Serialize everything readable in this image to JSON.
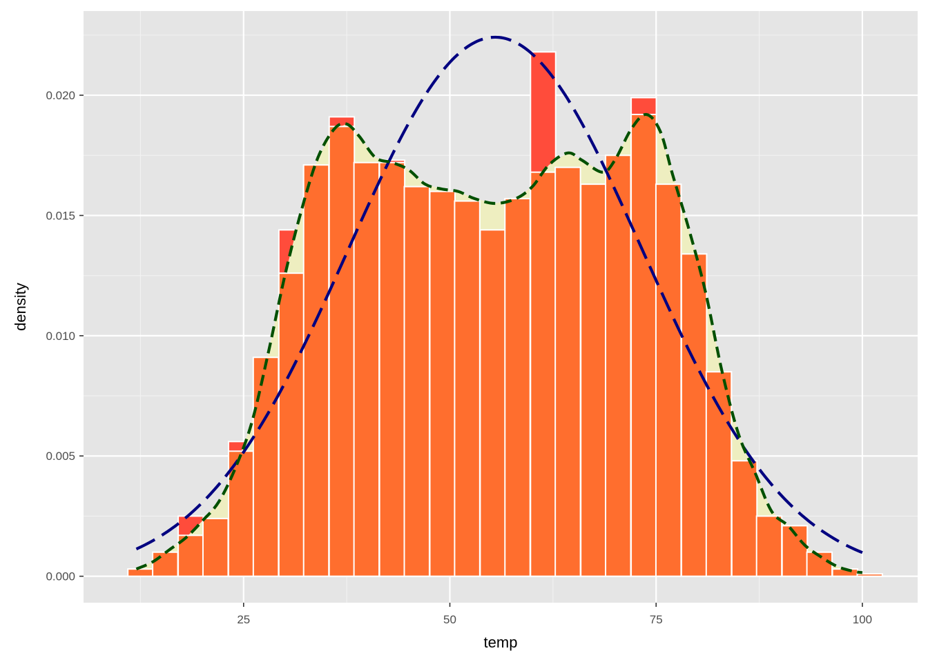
{
  "chart_data": {
    "type": "histogram",
    "title": "",
    "xlabel": "temp",
    "ylabel": "density",
    "xlim": [
      5.6,
      106.7
    ],
    "ylim": [
      -0.0011,
      0.0235
    ],
    "x_ticks": [
      25,
      50,
      75,
      100
    ],
    "x_tick_labels": [
      "25",
      "50",
      "75",
      "100"
    ],
    "y_ticks": [
      0.0,
      0.005,
      0.01,
      0.015,
      0.02
    ],
    "y_tick_labels": [
      "0.000",
      "0.005",
      "0.010",
      "0.015",
      "0.020"
    ],
    "grid": true,
    "bin_width": 3.05,
    "bin_centers": [
      12.5,
      15.5,
      18.6,
      21.6,
      24.7,
      27.7,
      30.8,
      33.8,
      36.9,
      39.9,
      43.0,
      46.0,
      49.1,
      52.1,
      55.2,
      58.2,
      61.3,
      64.3,
      67.4,
      70.4,
      73.5,
      76.5,
      79.6,
      82.6,
      85.7,
      88.7,
      91.8,
      94.8,
      97.9,
      100.9
    ],
    "series": [
      {
        "kind": "histogram",
        "color": "#FF4C3B",
        "values": [
          0.0003,
          0.001,
          0.0025,
          0.0024,
          0.0056,
          0.0091,
          0.0144,
          0.0171,
          0.0191,
          0.0172,
          0.0173,
          0.0162,
          0.016,
          0.0156,
          0.0144,
          0.0157,
          0.0218,
          0.017,
          0.0163,
          0.0175,
          0.0199,
          0.0163,
          0.0134,
          0.0085,
          0.0048,
          0.0025,
          0.0021,
          0.001,
          0.0003,
          0.0001
        ]
      },
      {
        "kind": "density-area",
        "color": "#EEEEC0",
        "x": [
          12,
          14,
          16,
          18,
          20,
          22,
          24,
          26,
          28,
          30,
          32,
          34,
          36,
          37.5,
          39,
          41,
          43,
          45,
          47,
          49,
          51,
          53,
          55.5,
          58,
          60,
          62,
          64.3,
          66,
          68.5,
          70,
          72,
          73.8,
          75.5,
          77,
          79,
          81,
          83,
          85,
          87,
          89,
          91,
          93,
          95,
          97,
          99,
          100
        ],
        "values": [
          0.0003,
          0.0006,
          0.0011,
          0.0016,
          0.0023,
          0.0031,
          0.0045,
          0.0064,
          0.0093,
          0.0125,
          0.0152,
          0.0174,
          0.0186,
          0.0188,
          0.0183,
          0.0174,
          0.0172,
          0.0169,
          0.0163,
          0.0161,
          0.016,
          0.0157,
          0.0155,
          0.0157,
          0.0162,
          0.0171,
          0.0176,
          0.0173,
          0.0168,
          0.0173,
          0.0186,
          0.0192,
          0.0185,
          0.0167,
          0.0144,
          0.0118,
          0.0085,
          0.0059,
          0.0043,
          0.0027,
          0.0021,
          0.0013,
          0.0008,
          0.0004,
          0.0002,
          0.00015
        ]
      },
      {
        "kind": "histogram-overlay",
        "color": "#FF6E2E",
        "values": [
          0.0003,
          0.001,
          0.0017,
          0.0024,
          0.0052,
          0.0091,
          0.0126,
          0.0171,
          0.0187,
          0.0172,
          0.0172,
          0.0162,
          0.016,
          0.0156,
          0.0144,
          0.0157,
          0.0168,
          0.017,
          0.0163,
          0.0175,
          0.0192,
          0.0163,
          0.0134,
          0.0085,
          0.0048,
          0.0025,
          0.0021,
          0.001,
          0.0003,
          0.0001
        ]
      },
      {
        "kind": "kernel-density-line",
        "color": "#005000",
        "dash": "dashed",
        "x": [
          12,
          14,
          16,
          18,
          20,
          22,
          24,
          26,
          28,
          30,
          32,
          34,
          36,
          37.5,
          39,
          41,
          43,
          45,
          47,
          49,
          51,
          53,
          55.5,
          58,
          60,
          62,
          64.3,
          66,
          68.5,
          70,
          72,
          73.8,
          75.5,
          77,
          79,
          81,
          83,
          85,
          87,
          89,
          91,
          93,
          95,
          97,
          99,
          100
        ],
        "values": [
          0.0003,
          0.0006,
          0.0011,
          0.0016,
          0.0023,
          0.0031,
          0.0045,
          0.0064,
          0.0093,
          0.0125,
          0.0152,
          0.0174,
          0.0186,
          0.0188,
          0.0183,
          0.0174,
          0.0172,
          0.0169,
          0.0163,
          0.0161,
          0.016,
          0.0157,
          0.0155,
          0.0157,
          0.0162,
          0.0171,
          0.0176,
          0.0173,
          0.0168,
          0.0173,
          0.0186,
          0.0192,
          0.0185,
          0.0167,
          0.0144,
          0.0118,
          0.0085,
          0.0059,
          0.0043,
          0.0027,
          0.0021,
          0.0013,
          0.0008,
          0.0004,
          0.0002,
          0.00015
        ]
      },
      {
        "kind": "normal-curve",
        "color": "#000080",
        "dash": "long-dashed",
        "mean": 55.5,
        "sd": 17.8,
        "x_range": [
          12,
          100
        ]
      }
    ]
  }
}
